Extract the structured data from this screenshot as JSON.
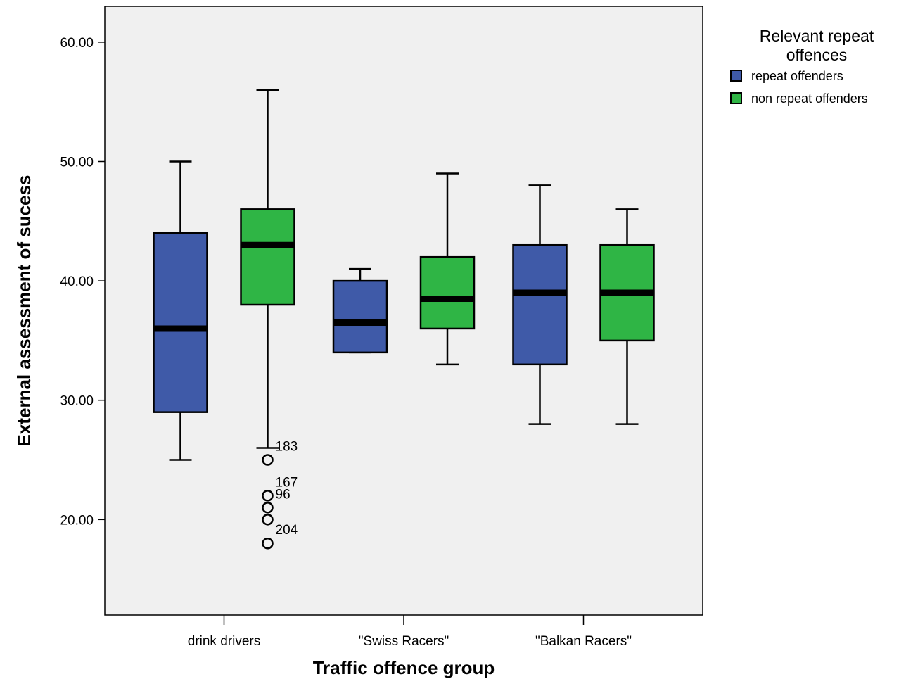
{
  "chart_data": {
    "type": "boxplot",
    "xlabel": "Traffic offence group",
    "ylabel": "External assessment of sucess",
    "ylim": [
      12,
      63
    ],
    "yticks": [
      "20.00",
      "30.00",
      "40.00",
      "50.00",
      "60.00"
    ],
    "categories": [
      "drink drivers",
      "\"Swiss Racers\"",
      "\"Balkan Racers\""
    ],
    "grid": false,
    "legend": {
      "title": "Relevant repeat offences",
      "placement": "top-right-outside"
    },
    "colors": {
      "plot_background": "#f0f0f0",
      "repeat_offenders": "#3f5aa8",
      "non_repeat_offenders": "#2fb545",
      "median": "#000000"
    },
    "series": [
      {
        "name": "repeat offenders",
        "color": "#3f5aa8",
        "boxes": [
          {
            "category": "drink drivers",
            "whisker_low": 25,
            "q1": 29,
            "median": 36,
            "q3": 44,
            "whisker_high": 50,
            "outliers": []
          },
          {
            "category": "\"Swiss Racers\"",
            "whisker_low": 34,
            "q1": 34,
            "median": 36.5,
            "q3": 40,
            "whisker_high": 41,
            "outliers": []
          },
          {
            "category": "\"Balkan Racers\"",
            "whisker_low": 28,
            "q1": 33,
            "median": 39,
            "q3": 43,
            "whisker_high": 48,
            "outliers": []
          }
        ]
      },
      {
        "name": "non repeat offenders",
        "color": "#2fb545",
        "boxes": [
          {
            "category": "drink drivers",
            "whisker_low": 26,
            "q1": 38,
            "median": 43,
            "q3": 46,
            "whisker_high": 56,
            "outliers": [
              {
                "value": 25,
                "label": "183"
              },
              {
                "value": 22,
                "label": "167"
              },
              {
                "value": 21,
                "label": "96"
              },
              {
                "value": 20,
                "label": ""
              },
              {
                "value": 18,
                "label": "204"
              }
            ]
          },
          {
            "category": "\"Swiss Racers\"",
            "whisker_low": 33,
            "q1": 36,
            "median": 38.5,
            "q3": 42,
            "whisker_high": 49,
            "outliers": []
          },
          {
            "category": "\"Balkan Racers\"",
            "whisker_low": 28,
            "q1": 35,
            "median": 39,
            "q3": 43,
            "whisker_high": 46,
            "outliers": []
          }
        ]
      }
    ]
  }
}
